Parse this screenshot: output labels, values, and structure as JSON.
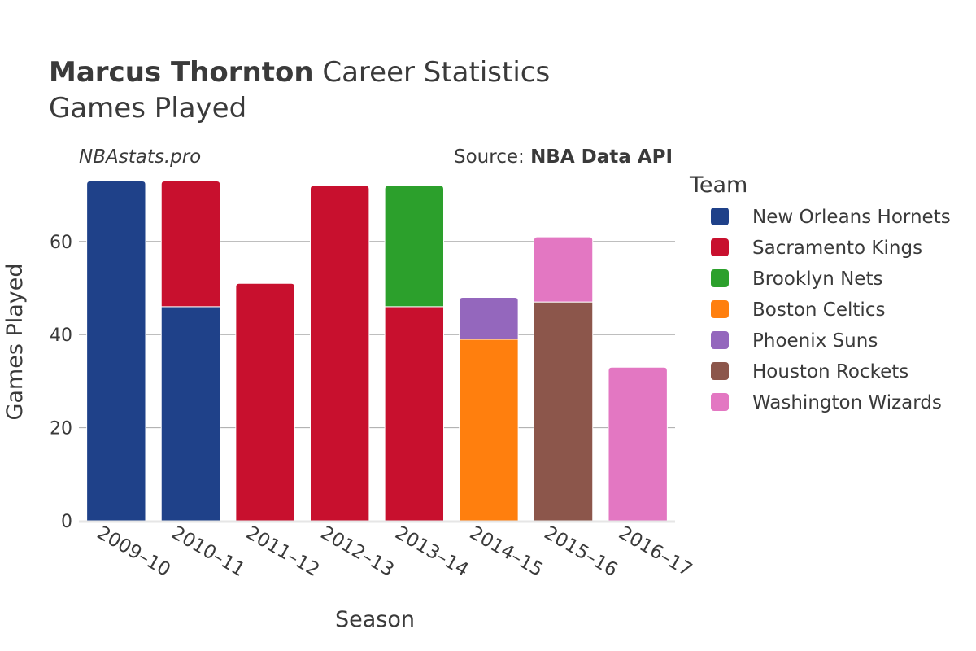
{
  "header": {
    "title_bold": "Marcus Thornton",
    "title_rest": " Career Statistics",
    "subtitle": "Games Played"
  },
  "watermark": "NBAstats.pro",
  "source": {
    "prefix": "Source: ",
    "name": "NBA Data API"
  },
  "legend": {
    "title": "Team"
  },
  "chart_data": {
    "type": "bar",
    "stacked": true,
    "xlabel": "Season",
    "ylabel": "Games Played",
    "ylim": [
      0,
      75
    ],
    "yticks": [
      0,
      20,
      40,
      60
    ],
    "grid": true,
    "legend_position": "right",
    "categories": [
      "2009–10",
      "2010–11",
      "2011–12",
      "2012–13",
      "2013–14",
      "2014–15",
      "2015–16",
      "2016–17"
    ],
    "series": [
      {
        "name": "New Orleans Hornets",
        "color": "#1f4189",
        "values": [
          73,
          46,
          0,
          0,
          0,
          0,
          0,
          0
        ]
      },
      {
        "name": "Sacramento Kings",
        "color": "#c8102e",
        "values": [
          0,
          27,
          51,
          72,
          46,
          0,
          0,
          0
        ]
      },
      {
        "name": "Brooklyn Nets",
        "color": "#2ca02c",
        "values": [
          0,
          0,
          0,
          0,
          26,
          0,
          0,
          0
        ]
      },
      {
        "name": "Boston Celtics",
        "color": "#ff7f0e",
        "values": [
          0,
          0,
          0,
          0,
          0,
          39,
          0,
          0
        ]
      },
      {
        "name": "Phoenix Suns",
        "color": "#9467bd",
        "values": [
          0,
          0,
          0,
          0,
          0,
          9,
          0,
          0
        ]
      },
      {
        "name": "Houston Rockets",
        "color": "#8c564b",
        "values": [
          0,
          0,
          0,
          0,
          0,
          0,
          47,
          0
        ]
      },
      {
        "name": "Washington Wizards",
        "color": "#e377c2",
        "values": [
          0,
          0,
          0,
          0,
          0,
          0,
          14,
          33
        ]
      }
    ]
  }
}
